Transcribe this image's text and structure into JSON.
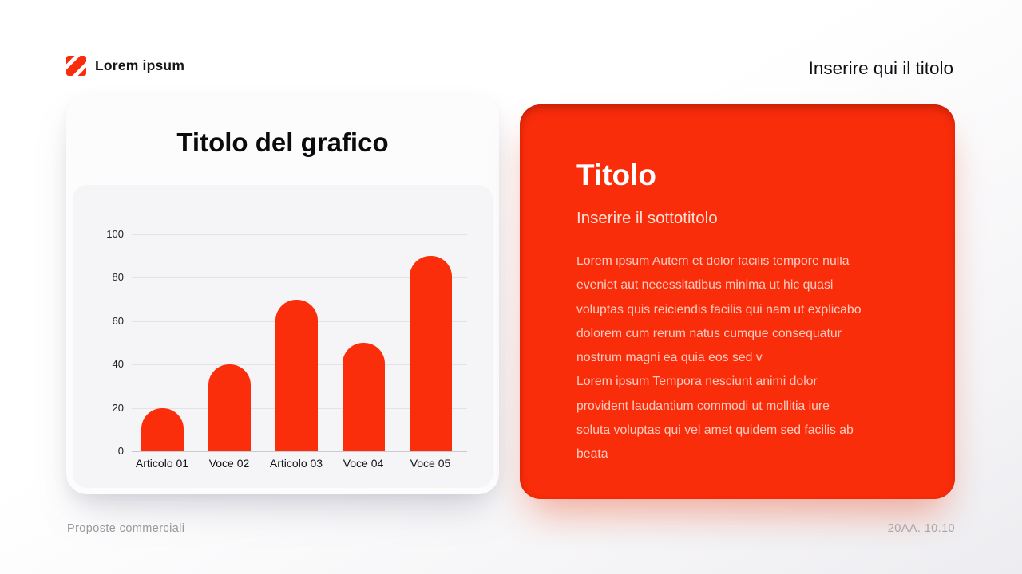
{
  "header": {
    "brand": "Lorem ipsum",
    "slide_title": "Inserire qui il titolo"
  },
  "chart_data": {
    "type": "bar",
    "title": "Titolo del grafico",
    "categories": [
      "Articolo 01",
      "Voce 02",
      "Articolo 03",
      "Voce 04",
      "Voce 05"
    ],
    "values": [
      20,
      40,
      70,
      50,
      90
    ],
    "y_ticks": [
      0,
      20,
      40,
      60,
      80,
      100
    ],
    "ylim": [
      0,
      100
    ],
    "grid": true,
    "legend": "none",
    "bar_color": "#fb2e0c",
    "xlabel": "",
    "ylabel": ""
  },
  "info_card": {
    "title": "Titolo",
    "subtitle": "Inserire il sottotitolo",
    "paragraphs": [
      "Lorem ipsum Autem et dolor facilis tempore nulla\neveniet aut necessitatibus minima ut hic quasi\nvoluptas quis reiciendis facilis qui nam ut explicabo\ndolorem cum rerum natus cumque consequatur\nnostrum magni ea quia eos sed v",
      "Lorem ipsum Tempora nesciunt animi dolor\nprovident laudantium commodi ut mollitia iure\nsoluta voluptas qui vel amet quidem sed facilis ab\nbeata"
    ]
  },
  "footer": {
    "left": "Proposte commerciali",
    "right": "20AA. 10.10"
  },
  "colors": {
    "accent": "#fa2d0b",
    "text_dark": "#111115",
    "muted_gray": "#9a9aa0",
    "card_bg": "#fcfcfd",
    "panel_bg": "#f5f5f7"
  },
  "icons": {
    "logo": "diagonal-stripes-logo"
  }
}
